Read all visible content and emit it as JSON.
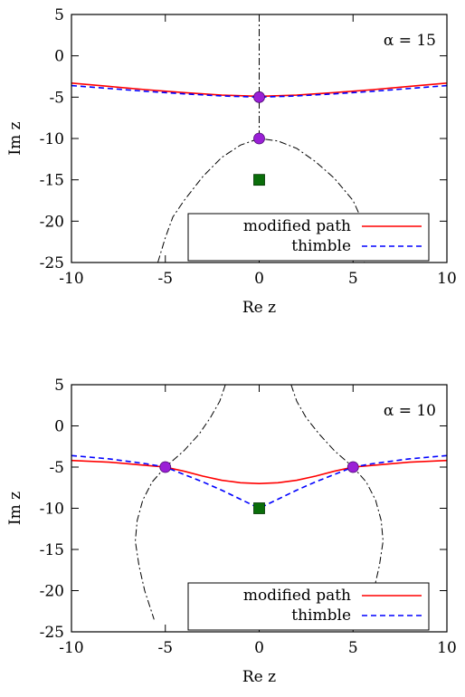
{
  "chart_data": [
    {
      "type": "line",
      "title": "",
      "annotation": "α = 15",
      "xlabel": "Re z",
      "ylabel": "Im z",
      "xlim": [
        -10,
        10
      ],
      "ylim": [
        -25,
        5
      ],
      "xticks": [
        -10,
        -5,
        0,
        5,
        10
      ],
      "yticks": [
        5,
        0,
        -5,
        -10,
        -15,
        -20,
        -25
      ],
      "xtick_labels": [
        "-10",
        "-5",
        "0",
        "5",
        "10"
      ],
      "ytick_labels": [
        "5",
        "0",
        "-5",
        "-10",
        "-15",
        "-20",
        "-25"
      ],
      "legend": {
        "position": "bottom-right",
        "entries": [
          {
            "label": "modified path",
            "color": "#ff0000",
            "style": "solid"
          },
          {
            "label": "thimble",
            "color": "#0000ff",
            "style": "dashed"
          }
        ]
      },
      "series": [
        {
          "name": "modified path",
          "color": "#ff0000",
          "style": "solid",
          "x": [
            -10,
            -8,
            -6,
            -4,
            -2,
            0,
            2,
            4,
            6,
            8,
            10
          ],
          "y": [
            -3.3,
            -3.7,
            -4.1,
            -4.45,
            -4.75,
            -4.9,
            -4.75,
            -4.45,
            -4.1,
            -3.7,
            -3.3
          ]
        },
        {
          "name": "thimble",
          "color": "#0000ff",
          "style": "dashed",
          "x": [
            -10,
            -8,
            -6,
            -4,
            -2,
            0,
            2,
            4,
            6,
            8,
            10
          ],
          "y": [
            -3.6,
            -3.95,
            -4.3,
            -4.6,
            -4.85,
            -5.0,
            -4.85,
            -4.6,
            -4.3,
            -3.95,
            -3.6
          ]
        }
      ],
      "curves": [
        {
          "style": "dashdot",
          "color": "#000000",
          "x": [
            0,
            0
          ],
          "y": [
            5,
            -10
          ]
        },
        {
          "style": "dashdot",
          "color": "#000000",
          "x": [
            -5.4,
            -5.0,
            -4.6,
            -4.0,
            -3.0,
            -2.0,
            -1.0,
            0,
            1.0,
            2.0,
            3.0,
            4.0,
            5.0,
            5.5,
            5.7,
            5.6
          ],
          "y": [
            -25,
            -22,
            -19.5,
            -17.5,
            -14.6,
            -12.3,
            -10.8,
            -10.0,
            -10.3,
            -11.2,
            -12.8,
            -14.8,
            -17.5,
            -20,
            -23,
            -25
          ]
        }
      ],
      "saddle_points": [
        {
          "x": 0,
          "y": -5
        },
        {
          "x": 0,
          "y": -10
        }
      ],
      "saddle_color": "#9a1fd6",
      "singular_point": {
        "x": 0,
        "y": -15
      },
      "singular_color": "#0a6e0a"
    },
    {
      "type": "line",
      "title": "",
      "annotation": "α = 10",
      "xlabel": "Re z",
      "ylabel": "Im z",
      "xlim": [
        -10,
        10
      ],
      "ylim": [
        -25,
        5
      ],
      "xticks": [
        -10,
        -5,
        0,
        5,
        10
      ],
      "yticks": [
        5,
        0,
        -5,
        -10,
        -15,
        -20,
        -25
      ],
      "xtick_labels": [
        "-10",
        "-5",
        "0",
        "5",
        "10"
      ],
      "ytick_labels": [
        "5",
        "0",
        "-5",
        "-10",
        "-15",
        "-20",
        "-25"
      ],
      "legend": {
        "position": "bottom-right",
        "entries": [
          {
            "label": "modified path",
            "color": "#ff0000",
            "style": "solid"
          },
          {
            "label": "thimble",
            "color": "#0000ff",
            "style": "dashed"
          }
        ]
      },
      "series": [
        {
          "name": "modified path",
          "color": "#ff0000",
          "style": "solid",
          "x": [
            -10,
            -8,
            -6,
            -5,
            -4,
            -3,
            -2,
            -1,
            0,
            1,
            2,
            3,
            4,
            5,
            6,
            8,
            10
          ],
          "y": [
            -4.2,
            -4.4,
            -4.8,
            -5.0,
            -5.5,
            -6.1,
            -6.6,
            -6.9,
            -7.0,
            -6.9,
            -6.6,
            -6.1,
            -5.5,
            -5.0,
            -4.8,
            -4.4,
            -4.2
          ]
        },
        {
          "name": "thimble",
          "color": "#0000ff",
          "style": "dashed",
          "x": [
            -10,
            -8,
            -6,
            -5,
            -4,
            -3,
            -2,
            -1,
            0,
            1,
            2,
            3,
            4,
            5,
            6,
            8,
            10
          ],
          "y": [
            -3.6,
            -4.0,
            -4.6,
            -5.0,
            -5.9,
            -6.8,
            -7.8,
            -8.9,
            -10.0,
            -8.9,
            -7.8,
            -6.8,
            -5.9,
            -5.0,
            -4.6,
            -4.0,
            -3.6
          ]
        }
      ],
      "curves": [
        {
          "style": "dashdot",
          "color": "#000000",
          "x": [
            -1.8,
            -2.1,
            -2.6,
            -3.2,
            -4.0,
            -5.0,
            -5.7,
            -6.2,
            -6.5,
            -6.6,
            -6.4,
            -6.1,
            -5.6
          ],
          "y": [
            5,
            3,
            1,
            -1,
            -3,
            -5,
            -6.8,
            -9,
            -11.5,
            -14,
            -17,
            -20,
            -23.5
          ]
        },
        {
          "style": "dashdot",
          "color": "#000000",
          "x": [
            1.7,
            2.0,
            2.5,
            3.2,
            4.0,
            5.0,
            5.7,
            6.2,
            6.5,
            6.6,
            6.4,
            6.1,
            5.6
          ],
          "y": [
            5,
            3,
            1,
            -1,
            -3,
            -5,
            -6.8,
            -9,
            -11.5,
            -14,
            -17,
            -20,
            -23.5
          ]
        }
      ],
      "saddle_points": [
        {
          "x": -5,
          "y": -5
        },
        {
          "x": 5,
          "y": -5
        }
      ],
      "saddle_color": "#9a1fd6",
      "singular_point": {
        "x": 0,
        "y": -10
      },
      "singular_color": "#0a6e0a"
    }
  ]
}
